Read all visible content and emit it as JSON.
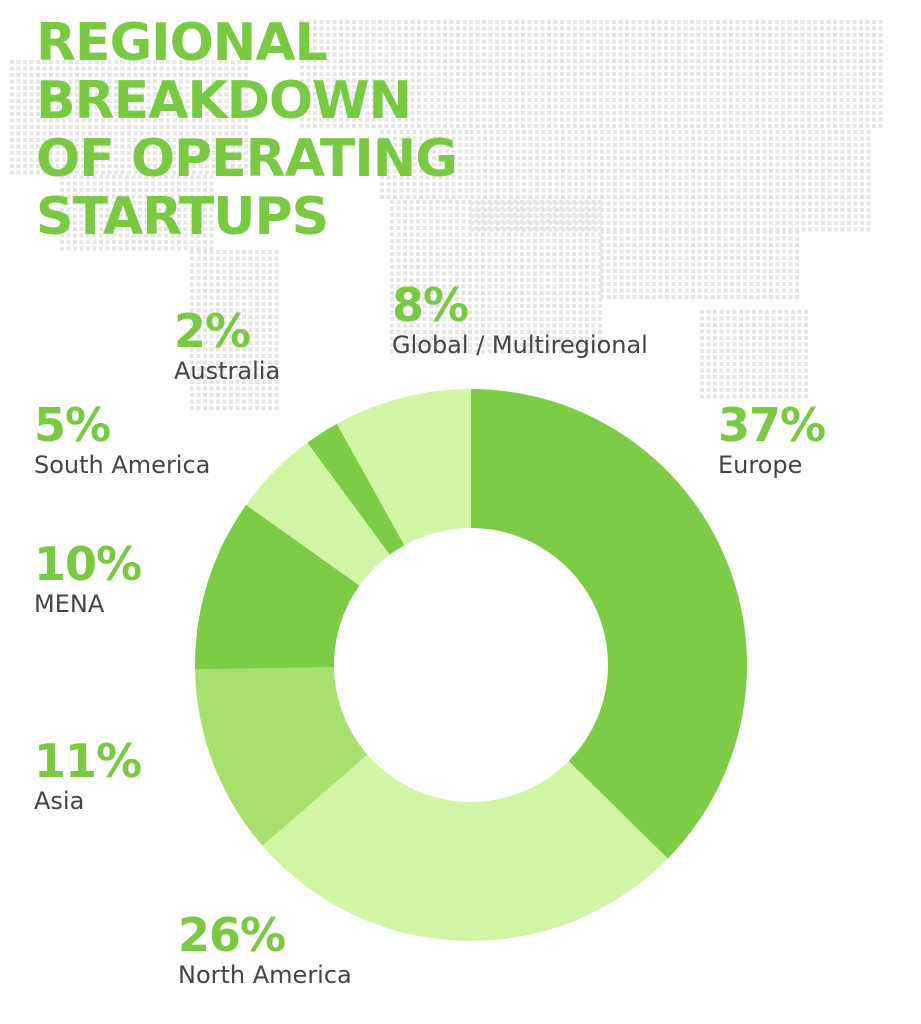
{
  "title_lines": [
    "REGIONAL",
    "BREAKDOWN",
    "OF OPERATING",
    "STARTUPS"
  ],
  "colors": {
    "title": "#7ac943",
    "percent": "#7ac943",
    "label": "#444444",
    "map_dots": "#e6e6e6"
  },
  "chart_data": {
    "type": "pie",
    "variant": "donut",
    "title": "REGIONAL BREAKDOWN OF OPERATING STARTUPS",
    "categories": [
      "Europe",
      "North America",
      "Asia",
      "MENA",
      "South America",
      "Australia",
      "Global / Multiregional"
    ],
    "values": [
      37,
      26,
      11,
      10,
      5,
      2,
      8
    ],
    "percent_labels": [
      "37%",
      "26%",
      "11%",
      "10%",
      "5%",
      "2%",
      "8%"
    ],
    "colors": [
      "#7ccc45",
      "#d0f5a4",
      "#a8e070",
      "#7ccc45",
      "#d0f5a4",
      "#7ccc45",
      "#d0f5a4"
    ],
    "start": "12 o'clock",
    "direction": "clockwise"
  }
}
